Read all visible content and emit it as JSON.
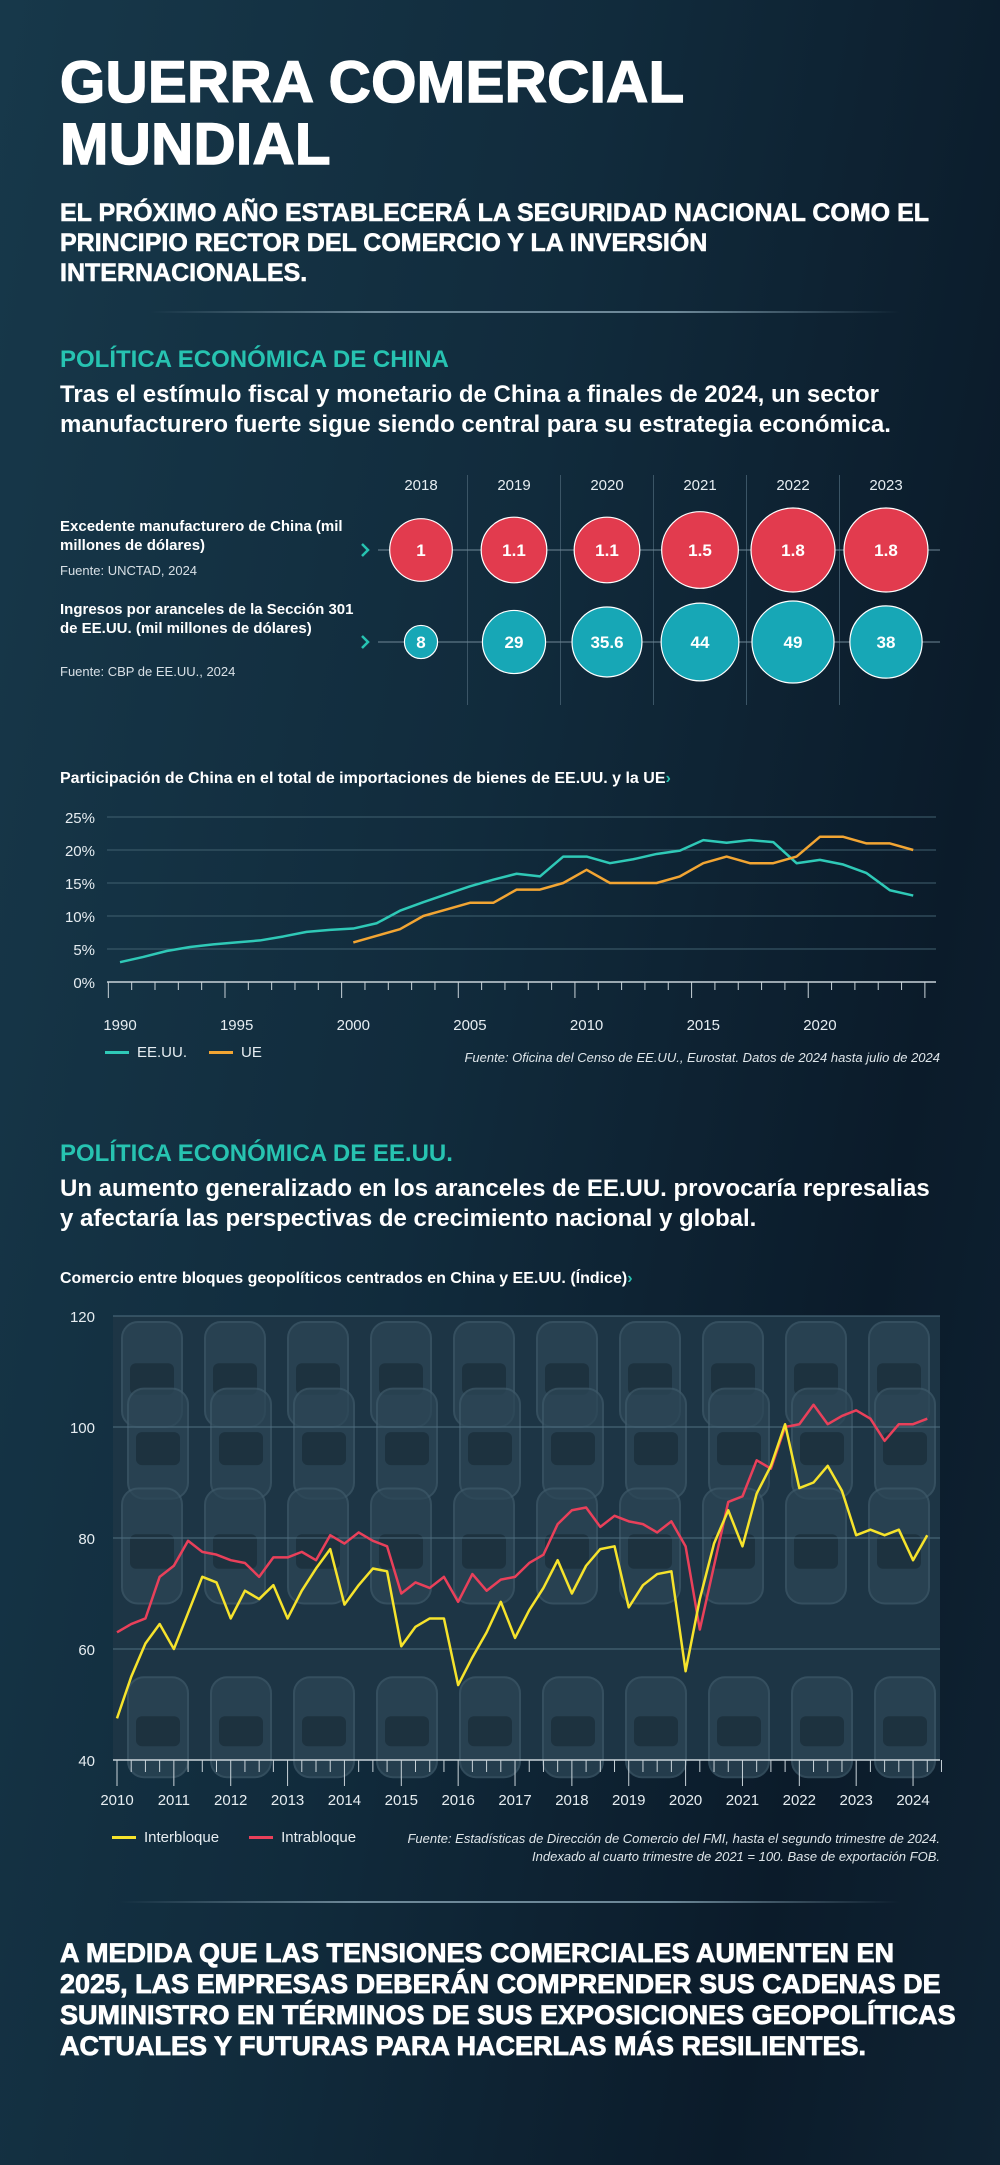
{
  "header": {
    "title": "GUERRA COMERCIAL MUNDIAL",
    "subtitle": "EL PRÓXIMO AÑO ESTABLECERÁ LA SEGURIDAD NACIONAL COMO EL PRINCIPIO RECTOR DEL COMERCIO Y LA INVERSIÓN INTERNACIONALES."
  },
  "china_section": {
    "heading": "POLÍTICA ECONÓMICA DE CHINA",
    "paragraph": "Tras el estímulo fiscal y monetario de China a finales de 2024, un sector manufacturero fuerte sigue siendo central para su estrategia económica.",
    "row1_label": "Excedente manufacturero de China (mil millones de dólares)",
    "row1_source": "Fuente: UNCTAD, 2024",
    "row2_label": "Ingresos por aranceles de la Sección 301 de EE.UU. (mil millones de dólares)",
    "row2_source": "Fuente: CBP de EE.UU., 2024"
  },
  "us_section": {
    "heading": "POLÍTICA ECONÓMICA DE EE.UU.",
    "paragraph": "Un aumento generalizado en los aranceles de EE.UU. provocaría represalias y afectaría las perspectivas de crecimiento nacional y global."
  },
  "conclusion": "A MEDIDA QUE LAS TENSIONES COMERCIALES AUMENTEN EN 2025, LAS EMPRESAS DEBERÁN COMPRENDER SUS CADENAS DE SUMINISTRO EN TÉRMINOS DE SUS EXPOSICIONES GEOPOLÍTICAS ACTUALES Y FUTURAS PARA HACERLAS MÁS RESILIENTES.",
  "chevron": "›",
  "colors": {
    "teal": "#27c3b1",
    "red_bubble": "#e23b4e",
    "teal_bubble": "#17a7b6",
    "us_line": "#2fc9b7",
    "eu_line": "#f2a533",
    "inter_line": "#f6e32c",
    "intra_line": "#e9405a"
  },
  "chart_data": [
    {
      "type": "bubble",
      "categories": [
        "2018",
        "2019",
        "2020",
        "2021",
        "2022",
        "2023"
      ],
      "series": [
        {
          "name": "Excedente manufacturero de China",
          "values": [
            1,
            1.1,
            1.1,
            1.5,
            1.8,
            1.8
          ],
          "labels": [
            "1",
            "1.1",
            "1.1",
            "1.5",
            "1.8",
            "1.8"
          ]
        },
        {
          "name": "Ingresos por aranceles de la Sección 301 de EE.UU.",
          "values": [
            8,
            29,
            35.6,
            44,
            49,
            38
          ],
          "labels": [
            "8",
            "29",
            "35.6",
            "44",
            "49",
            "38"
          ]
        }
      ]
    },
    {
      "type": "line",
      "title": "Participación de China en el total de importaciones de bienes de EE.UU. y la UE",
      "xlabel": "",
      "ylabel": "",
      "xlim": [
        1990,
        2024
      ],
      "ylim": [
        0,
        25
      ],
      "yticks": [
        0,
        5,
        10,
        15,
        20,
        25
      ],
      "ytick_labels": [
        "0%",
        "5%",
        "10%",
        "15%",
        "20%",
        "25%"
      ],
      "xticks": [
        1990,
        1995,
        2000,
        2005,
        2010,
        2015,
        2020
      ],
      "xtick_labels": [
        "1990",
        "1995",
        "2000",
        "2005",
        "2010",
        "2015",
        "2020"
      ],
      "grid": true,
      "legend": "bottom-left",
      "series": [
        {
          "name": "EE.UU.",
          "x_start": 1990,
          "values": [
            3,
            3.8,
            4.7,
            5.3,
            5.7,
            6.0,
            6.3,
            6.9,
            7.6,
            7.9,
            8.1,
            8.9,
            10.8,
            12.1,
            13.3,
            14.5,
            15.5,
            16.4,
            16.0,
            19.0,
            19.0,
            18.0,
            18.6,
            19.4,
            19.9,
            21.5,
            21.1,
            21.5,
            21.2,
            18.0,
            18.5,
            17.8,
            16.5,
            13.9,
            13.1
          ]
        },
        {
          "name": "UE",
          "x_start": 2000,
          "values": [
            6,
            7,
            8,
            10,
            11,
            12,
            12,
            14,
            14,
            15,
            17,
            15,
            15,
            15,
            16,
            18,
            19,
            18,
            18,
            19,
            22,
            22,
            21,
            21,
            20
          ]
        }
      ],
      "source": "Fuente: Oficina del Censo de EE.UU., Eurostat. Datos de 2024 hasta julio de 2024"
    },
    {
      "type": "line",
      "title": "Comercio entre bloques geopolíticos centrados en China y EE.UU. (Índice)",
      "xlabel": "",
      "ylabel": "",
      "xlim": [
        2010,
        2024.25
      ],
      "ylim": [
        40,
        120
      ],
      "yticks": [
        40,
        60,
        80,
        100,
        120
      ],
      "ytick_labels": [
        "40",
        "60",
        "80",
        "100",
        "120"
      ],
      "xticks": [
        2010,
        2011,
        2012,
        2013,
        2014,
        2015,
        2016,
        2017,
        2018,
        2019,
        2020,
        2021,
        2022,
        2023,
        2024
      ],
      "xtick_labels": [
        "2010",
        "2011",
        "2012",
        "2013",
        "2014",
        "2015",
        "2016",
        "2017",
        "2018",
        "2019",
        "2020",
        "2021",
        "2022",
        "2023",
        "2024"
      ],
      "grid": true,
      "legend": "bottom-left",
      "frequency": "quarterly",
      "start": "2010Q1",
      "series": [
        {
          "name": "Interbloque",
          "values": [
            47.5,
            55,
            61,
            64.5,
            60,
            66.5,
            73,
            72,
            65.5,
            70.5,
            69,
            71.5,
            65.5,
            70.5,
            74.5,
            78,
            68,
            71.5,
            74.5,
            74,
            60.5,
            64,
            65.5,
            65.5,
            53.5,
            58.5,
            63,
            68.5,
            62,
            67,
            71,
            76,
            70,
            75,
            78,
            78.5,
            67.5,
            71.5,
            73.5,
            74,
            56,
            69,
            79,
            85,
            78.5,
            88,
            93,
            100.5,
            89,
            90,
            93,
            88.5,
            80.5,
            81.5,
            80.5,
            81.5,
            76,
            80.5
          ]
        },
        {
          "name": "Intrabloque",
          "values": [
            63,
            64.5,
            65.5,
            73,
            75,
            79.5,
            77.5,
            77,
            76,
            75.5,
            73,
            76.5,
            76.5,
            77.5,
            76,
            80.5,
            79,
            81,
            79.5,
            78.5,
            70,
            72,
            71,
            73,
            68.5,
            73.5,
            70.5,
            72.5,
            73,
            75.5,
            77,
            82.5,
            85,
            85.5,
            82,
            84,
            83,
            82.5,
            81,
            83,
            78.5,
            63.5,
            75,
            86.5,
            87.5,
            94,
            92.5,
            100,
            100.5,
            104,
            100.5,
            102,
            103,
            101.5,
            97.5,
            100.5,
            100.5,
            101.5
          ]
        }
      ],
      "source_line1": "Fuente: Estadísticas de Dirección de Comercio del FMI, hasta el segundo trimestre de 2024.",
      "source_line2": "Indexado al cuarto trimestre de 2021 = 100. Base de exportación FOB."
    }
  ]
}
